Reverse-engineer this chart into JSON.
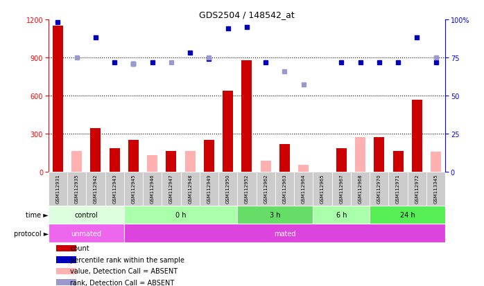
{
  "title": "GDS2504 / 148542_at",
  "samples": [
    "GSM112931",
    "GSM112935",
    "GSM112942",
    "GSM112943",
    "GSM112945",
    "GSM112946",
    "GSM112947",
    "GSM112948",
    "GSM112949",
    "GSM112950",
    "GSM112952",
    "GSM112962",
    "GSM112963",
    "GSM112964",
    "GSM112965",
    "GSM112967",
    "GSM112968",
    "GSM112970",
    "GSM112971",
    "GSM112972",
    "GSM113345"
  ],
  "count_values": [
    1150,
    null,
    340,
    185,
    250,
    null,
    160,
    null,
    250,
    640,
    880,
    null,
    215,
    null,
    null,
    185,
    null,
    270,
    165,
    565,
    null
  ],
  "count_absent": [
    null,
    165,
    null,
    null,
    null,
    130,
    null,
    165,
    null,
    null,
    null,
    85,
    null,
    55,
    null,
    null,
    270,
    null,
    null,
    null,
    155
  ],
  "rank_values": [
    98,
    null,
    88,
    72,
    71,
    72,
    null,
    78,
    74,
    94,
    95,
    72,
    null,
    null,
    null,
    72,
    72,
    72,
    72,
    88,
    72
  ],
  "rank_absent": [
    null,
    75,
    null,
    null,
    71,
    null,
    72,
    null,
    75,
    null,
    null,
    null,
    66,
    57,
    null,
    null,
    null,
    null,
    null,
    null,
    75
  ],
  "ylim_left": [
    0,
    1200
  ],
  "ylim_right": [
    0,
    100
  ],
  "yticks_left": [
    0,
    300,
    600,
    900,
    1200
  ],
  "yticks_right": [
    0,
    25,
    50,
    75,
    100
  ],
  "grid_values": [
    300,
    600,
    900
  ],
  "bar_color": "#cc0000",
  "bar_absent_color": "#ffb0b0",
  "rank_color": "#0000bb",
  "rank_absent_color": "#9999cc",
  "time_groups": [
    {
      "label": "control",
      "start": 0,
      "end": 4,
      "color": "#ddffdd"
    },
    {
      "label": "0 h",
      "start": 4,
      "end": 10,
      "color": "#aaffaa"
    },
    {
      "label": "3 h",
      "start": 10,
      "end": 14,
      "color": "#66dd66"
    },
    {
      "label": "6 h",
      "start": 14,
      "end": 17,
      "color": "#aaffaa"
    },
    {
      "label": "24 h",
      "start": 17,
      "end": 21,
      "color": "#55ee55"
    }
  ],
  "protocol_groups": [
    {
      "label": "unmated",
      "start": 0,
      "end": 4,
      "color": "#ee66ee"
    },
    {
      "label": "mated",
      "start": 4,
      "end": 21,
      "color": "#dd44dd"
    }
  ],
  "bg_color": "#ffffff",
  "sample_bg_color": "#cccccc",
  "legend": [
    {
      "label": "count",
      "color": "#cc0000"
    },
    {
      "label": "percentile rank within the sample",
      "color": "#0000bb"
    },
    {
      "label": "value, Detection Call = ABSENT",
      "color": "#ffb0b0"
    },
    {
      "label": "rank, Detection Call = ABSENT",
      "color": "#9999cc"
    }
  ]
}
